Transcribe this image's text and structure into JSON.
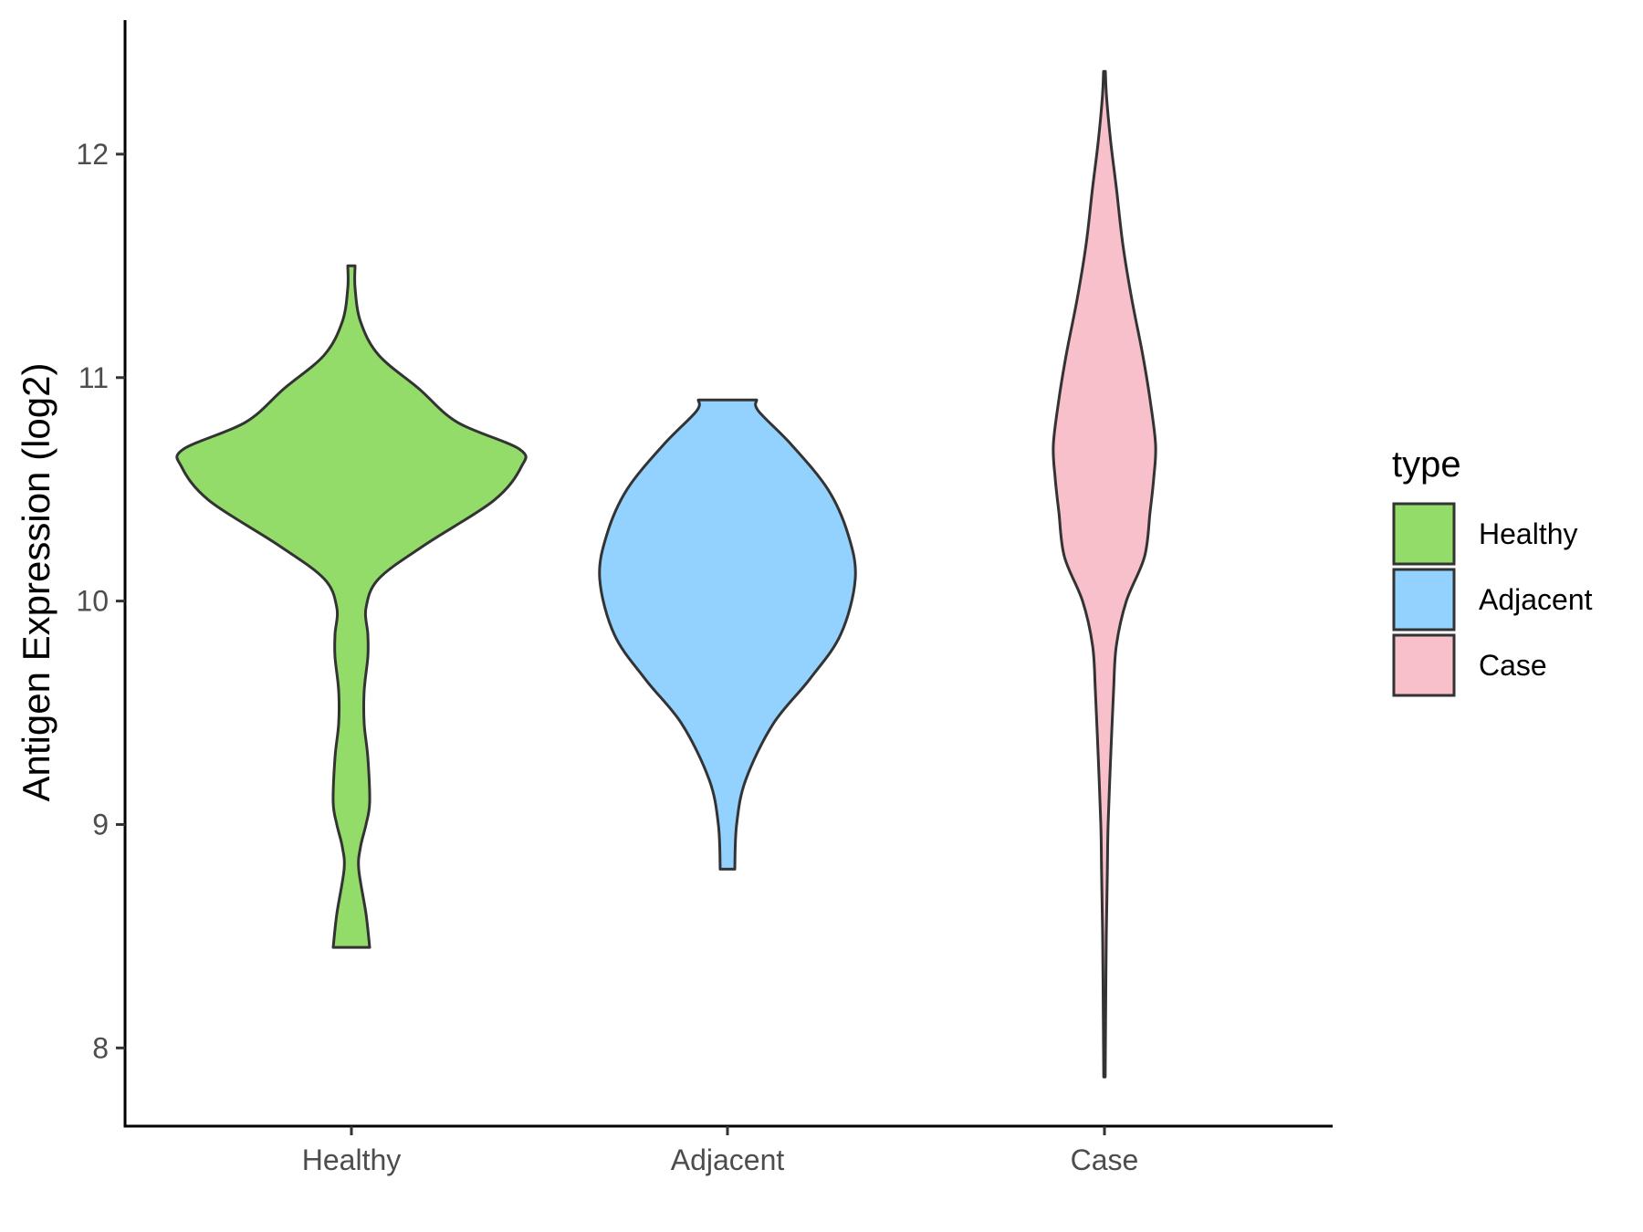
{
  "chart_data": {
    "type": "violin",
    "title": "",
    "xlabel": "",
    "ylabel": "Antigen Expression (log2)",
    "categories": [
      "Healthy",
      "Adjacent",
      "Case"
    ],
    "yticks": [
      8,
      9,
      10,
      11,
      12
    ],
    "ylim": [
      7.65,
      12.6
    ],
    "grid": false,
    "legend": {
      "title": "type",
      "position": "right",
      "items": [
        {
          "label": "Healthy",
          "color": "#93DC6A"
        },
        {
          "label": "Adjacent",
          "color": "#93D2FE"
        },
        {
          "label": "Case",
          "color": "#F7C0CB"
        }
      ]
    },
    "outline_color": "#333333",
    "series": [
      {
        "name": "Healthy",
        "color": "#93DC6A",
        "min": 8.45,
        "max": 11.5,
        "density": [
          [
            8.45,
            0.1
          ],
          [
            8.6,
            0.08
          ],
          [
            8.8,
            0.04
          ],
          [
            8.9,
            0.05
          ],
          [
            9.0,
            0.08
          ],
          [
            9.1,
            0.1
          ],
          [
            9.3,
            0.09
          ],
          [
            9.45,
            0.07
          ],
          [
            9.6,
            0.07
          ],
          [
            9.75,
            0.09
          ],
          [
            9.85,
            0.09
          ],
          [
            9.97,
            0.08
          ],
          [
            10.1,
            0.15
          ],
          [
            10.25,
            0.4
          ],
          [
            10.45,
            0.78
          ],
          [
            10.6,
            0.93
          ],
          [
            10.68,
            0.92
          ],
          [
            10.8,
            0.58
          ],
          [
            10.95,
            0.37
          ],
          [
            11.1,
            0.15
          ],
          [
            11.25,
            0.05
          ],
          [
            11.4,
            0.02
          ],
          [
            11.5,
            0.02
          ]
        ]
      },
      {
        "name": "Adjacent",
        "color": "#93D2FE",
        "min": 8.8,
        "max": 10.9,
        "density": [
          [
            8.8,
            0.04
          ],
          [
            9.0,
            0.05
          ],
          [
            9.2,
            0.1
          ],
          [
            9.45,
            0.25
          ],
          [
            9.65,
            0.45
          ],
          [
            9.85,
            0.62
          ],
          [
            10.1,
            0.7
          ],
          [
            10.3,
            0.66
          ],
          [
            10.5,
            0.55
          ],
          [
            10.7,
            0.35
          ],
          [
            10.85,
            0.17
          ],
          [
            10.9,
            0.16
          ]
        ]
      },
      {
        "name": "Case",
        "color": "#F7C0CB",
        "min": 7.87,
        "max": 12.37,
        "density": [
          [
            7.87,
            0.004
          ],
          [
            8.1,
            0.006
          ],
          [
            8.5,
            0.01
          ],
          [
            8.8,
            0.016
          ],
          [
            9.0,
            0.02
          ],
          [
            9.3,
            0.034
          ],
          [
            9.6,
            0.05
          ],
          [
            9.8,
            0.065
          ],
          [
            10.0,
            0.12
          ],
          [
            10.2,
            0.22
          ],
          [
            10.4,
            0.25
          ],
          [
            10.55,
            0.27
          ],
          [
            10.7,
            0.28
          ],
          [
            10.9,
            0.25
          ],
          [
            11.1,
            0.21
          ],
          [
            11.35,
            0.15
          ],
          [
            11.6,
            0.1
          ],
          [
            11.85,
            0.065
          ],
          [
            12.05,
            0.035
          ],
          [
            12.25,
            0.012
          ],
          [
            12.37,
            0.005
          ]
        ]
      }
    ]
  }
}
